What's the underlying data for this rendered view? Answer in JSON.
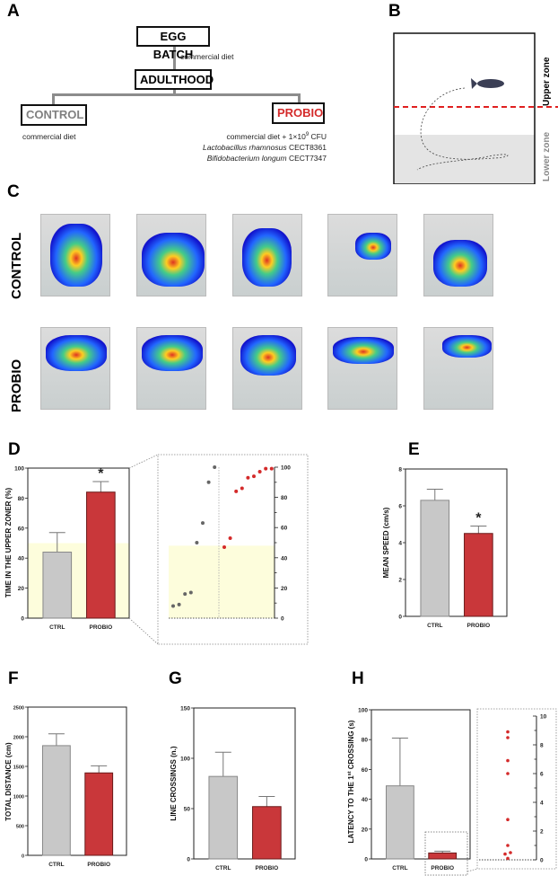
{
  "panels": {
    "A": "A",
    "B": "B",
    "C": "C",
    "D": "D",
    "E": "E",
    "F": "F",
    "G": "G",
    "H": "H"
  },
  "panelA": {
    "egg_batch": "EGG BATCH",
    "diet1": "commercial diet",
    "adulthood": "ADULTHOOD",
    "control": "CONTROL",
    "probio": "PROBIO",
    "control_diet": "commercial diet",
    "probio_diet_line1": "commercial diet + 1×10",
    "probio_diet_exp": "9",
    "probio_diet_cfu": " CFU",
    "probio_l_species": "Lactobacillus rhamnosus",
    "probio_l_strain": " CECT8361",
    "probio_b_species": "Bifidobacterium longum",
    "probio_b_strain": " CECT7347",
    "colors": {
      "control": "#808080",
      "probio": "#d42a2a"
    }
  },
  "panelB": {
    "upper_zone": "Upper zone",
    "lower_zone": "Lower zone",
    "divider_color": "#e02020"
  },
  "panelC": {
    "row_labels": [
      "CONTROL",
      "PROBIO"
    ]
  },
  "chart_data": [
    {
      "id": "D",
      "type": "bar",
      "categories": [
        "CTRL",
        "PROBIO"
      ],
      "values": [
        44,
        84
      ],
      "errors": [
        13,
        7
      ],
      "ylabel": "TIME IN THE UPPER ZONER (%)",
      "ylim": [
        0,
        100
      ],
      "yticks": [
        0,
        20,
        40,
        60,
        80,
        100
      ],
      "shaded_below": 50,
      "significance": [
        "",
        "*"
      ],
      "colors": [
        "#c8c8c8",
        "#c9373a"
      ]
    },
    {
      "id": "D-inset",
      "type": "scatter",
      "ylim": [
        0,
        100
      ],
      "yticks": [
        0,
        20,
        40,
        60,
        80,
        100
      ],
      "series": [
        {
          "name": "CTRL",
          "values": [
            8,
            9,
            16,
            17,
            50,
            63,
            90,
            100
          ],
          "color": "#666666"
        },
        {
          "name": "PROBIO",
          "values": [
            47,
            53,
            84,
            86,
            93,
            94,
            97,
            99,
            99
          ],
          "color": "#d42a2a"
        }
      ],
      "shaded_below": 48
    },
    {
      "id": "E",
      "type": "bar",
      "categories": [
        "CTRL",
        "PROBIO"
      ],
      "values": [
        6.3,
        4.5
      ],
      "errors": [
        0.6,
        0.4
      ],
      "ylabel": "MEAN SPEED (cm/s)",
      "ylim": [
        0,
        8
      ],
      "yticks": [
        0,
        2,
        4,
        6,
        8
      ],
      "significance": [
        "",
        "*"
      ],
      "colors": [
        "#c8c8c8",
        "#c9373a"
      ]
    },
    {
      "id": "F",
      "type": "bar",
      "categories": [
        "CTRL",
        "PROBIO"
      ],
      "values": [
        1850,
        1390
      ],
      "errors": [
        200,
        120
      ],
      "ylabel": "TOTAL DISTANCE (cm)",
      "ylim": [
        0,
        2500
      ],
      "yticks": [
        0,
        500,
        1000,
        1500,
        2000,
        2500
      ],
      "colors": [
        "#c8c8c8",
        "#c9373a"
      ]
    },
    {
      "id": "G",
      "type": "bar",
      "categories": [
        "CTRL",
        "PROBIO"
      ],
      "values": [
        82,
        52
      ],
      "errors": [
        24,
        10
      ],
      "ylabel": "LINE CROSSINGS (n.)",
      "ylim": [
        0,
        150
      ],
      "yticks": [
        0,
        50,
        100,
        150
      ],
      "colors": [
        "#c8c8c8",
        "#c9373a"
      ]
    },
    {
      "id": "H",
      "type": "bar",
      "categories": [
        "CTRL",
        "PROBIO"
      ],
      "values": [
        49,
        4
      ],
      "errors": [
        32,
        1.2
      ],
      "ylabel_pre": "LATENCY TO THE 1",
      "ylabel_sup": "st",
      "ylabel_post": " CROSSING (s)",
      "ylim": [
        0,
        100
      ],
      "yticks": [
        0,
        20,
        40,
        60,
        80,
        100
      ],
      "colors": [
        "#c8c8c8",
        "#c9373a"
      ]
    },
    {
      "id": "H-inset",
      "type": "scatter",
      "ylim": [
        0,
        10
      ],
      "yticks": [
        0,
        2,
        4,
        6,
        8,
        10
      ],
      "series": [
        {
          "name": "PROBIO",
          "values": [
            0.1,
            0.4,
            0.5,
            1.0,
            2.8,
            6.0,
            6.9,
            8.5,
            8.9
          ],
          "color": "#d42a2a"
        }
      ]
    }
  ]
}
